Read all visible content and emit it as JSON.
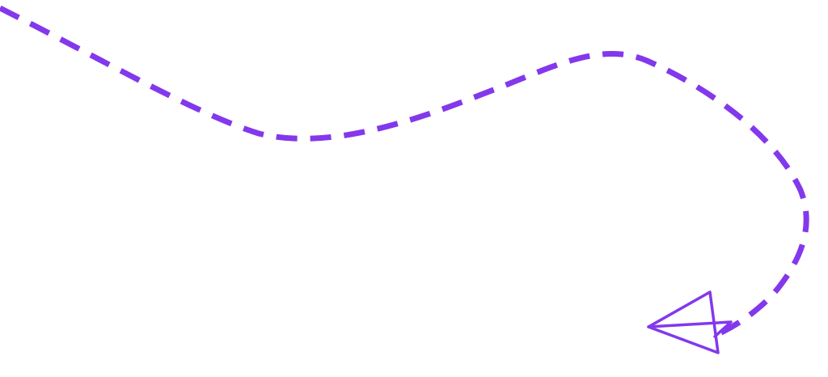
{
  "illustration": {
    "kind": "dashed flight path ending in paper plane",
    "icon": "paper-plane-icon",
    "stroke_color": "#8338EC"
  }
}
